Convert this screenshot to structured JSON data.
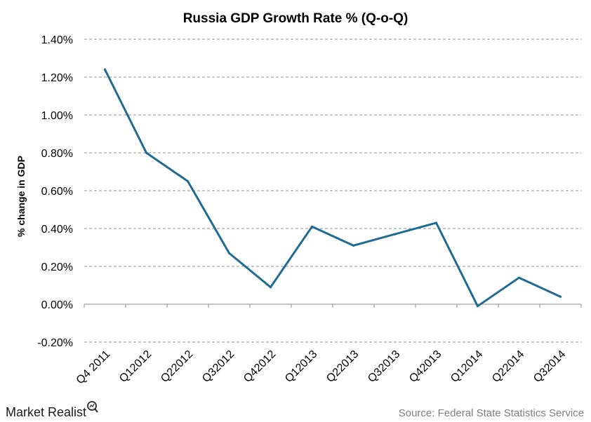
{
  "chart_data": {
    "type": "line",
    "title": "Russia GDP Growth Rate % (Q-o-Q)",
    "xlabel": "",
    "ylabel": "% change in GDP",
    "categories": [
      "Q4 2011",
      "Q12012",
      "Q22012",
      "Q32012",
      "Q42012",
      "Q12013",
      "Q22013",
      "Q32013",
      "Q42013",
      "Q12014",
      "Q22014",
      "Q32014"
    ],
    "series": [
      {
        "values": [
          1.24,
          0.8,
          0.65,
          0.27,
          0.09,
          0.41,
          0.31,
          0.37,
          0.43,
          -0.01,
          0.14,
          0.04
        ],
        "color": "#1f6b93"
      }
    ],
    "ylim": [
      -0.2,
      1.4
    ],
    "yticks": [
      "1.40%",
      "1.20%",
      "1.00%",
      "0.80%",
      "0.60%",
      "0.40%",
      "0.20%",
      "0.00%",
      "-0.20%"
    ],
    "grid": "horizontal dashed",
    "source": "Source: Federal State Statistics Service"
  },
  "branding": {
    "name": "Market Realist"
  }
}
